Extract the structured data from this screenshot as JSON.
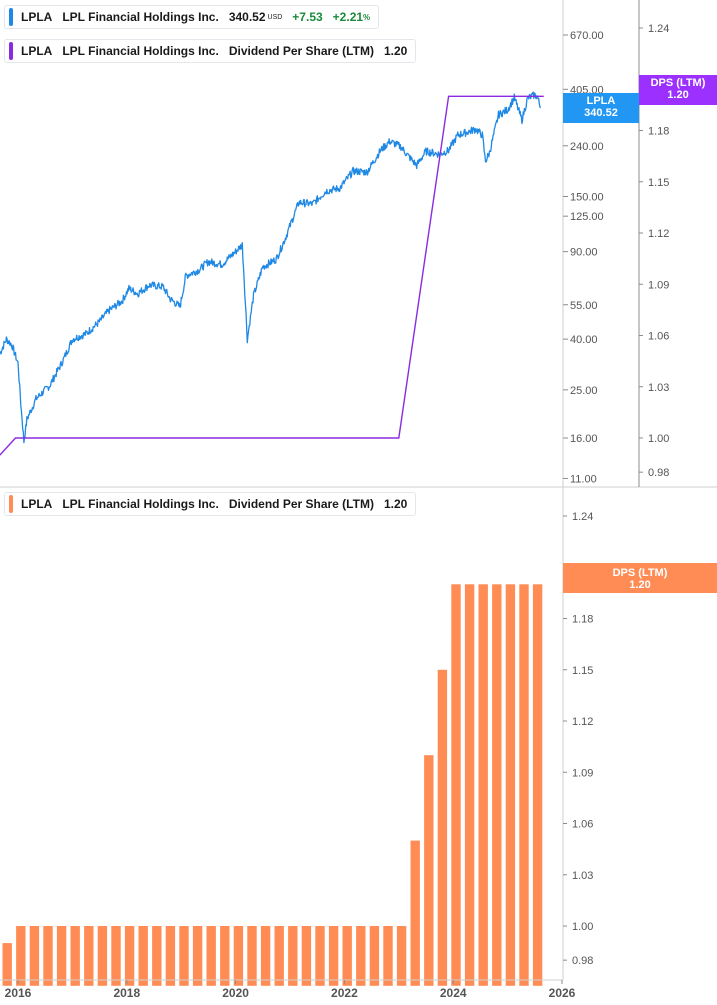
{
  "legend": {
    "price": {
      "ticker": "LPLA",
      "name": "LPL Financial Holdings Inc.",
      "price": "340.52",
      "currency": "USD",
      "change": "+7.53",
      "change_pct": "+2.21",
      "pct_sign": "%",
      "color": "#1e88e5"
    },
    "dps_top": {
      "ticker": "LPLA",
      "name": "LPL Financial Holdings Inc.",
      "metric": "Dividend Per Share (LTM)",
      "value": "1.20",
      "color": "#8a2be2"
    },
    "dps_bottom": {
      "ticker": "LPLA",
      "name": "LPL Financial Holdings Inc.",
      "metric": "Dividend Per Share (LTM)",
      "value": "1.20",
      "color": "#ff8c55"
    }
  },
  "badges": {
    "price": {
      "line1": "LPLA",
      "line2": "340.52",
      "color": "#2196f3"
    },
    "dps_top": {
      "line1": "DPS (LTM)",
      "line2": "1.20",
      "color": "#9b30ff"
    },
    "dps_bottom": {
      "line1": "DPS (LTM)",
      "line2": "1.20",
      "color": "#ff8c55"
    }
  },
  "colors": {
    "price_line": "#1e88e5",
    "dps_line": "#8a2be2",
    "bars": "#ff8c55",
    "axis_text": "#555555",
    "grid": "#e6e6e6"
  },
  "chart_data": [
    {
      "type": "line",
      "title": "LPLA price",
      "scale": "log",
      "y_ticks": [
        "670.00",
        "405.00",
        "240.00",
        "150.00",
        "125.00",
        "90.00",
        "55.00",
        "40.00",
        "25.00",
        "16.00",
        "11.00"
      ],
      "ylim": [
        10.5,
        880
      ],
      "x_range": [
        "2015-09-01",
        "2025-09-01"
      ],
      "series": [
        {
          "name": "LPLA",
          "points": [
            [
              "2015-09-01",
              35
            ],
            [
              "2015-10-15",
              40
            ],
            [
              "2015-11-20",
              38
            ],
            [
              "2016-01-01",
              32
            ],
            [
              "2016-01-20",
              22
            ],
            [
              "2016-02-10",
              15.5
            ],
            [
              "2016-03-01",
              19
            ],
            [
              "2016-05-01",
              23
            ],
            [
              "2016-08-01",
              26
            ],
            [
              "2016-11-01",
              33
            ],
            [
              "2017-01-01",
              40
            ],
            [
              "2017-04-01",
              42
            ],
            [
              "2017-07-01",
              47
            ],
            [
              "2017-09-01",
              52
            ],
            [
              "2017-12-01",
              57
            ],
            [
              "2018-01-15",
              64
            ],
            [
              "2018-03-15",
              61
            ],
            [
              "2018-06-01",
              66
            ],
            [
              "2018-09-01",
              65
            ],
            [
              "2018-10-20",
              58
            ],
            [
              "2018-12-24",
              54
            ],
            [
              "2019-02-01",
              72
            ],
            [
              "2019-05-01",
              76
            ],
            [
              "2019-07-01",
              82
            ],
            [
              "2019-10-01",
              80
            ],
            [
              "2020-01-01",
              90
            ],
            [
              "2020-02-15",
              96
            ],
            [
              "2020-03-20",
              40
            ],
            [
              "2020-05-01",
              60
            ],
            [
              "2020-07-01",
              78
            ],
            [
              "2020-10-01",
              84
            ],
            [
              "2020-12-01",
              102
            ],
            [
              "2021-03-01",
              142
            ],
            [
              "2021-06-01",
              140
            ],
            [
              "2021-09-01",
              158
            ],
            [
              "2021-12-01",
              162
            ],
            [
              "2022-03-01",
              190
            ],
            [
              "2022-06-01",
              188
            ],
            [
              "2022-09-01",
              230
            ],
            [
              "2022-11-01",
              250
            ],
            [
              "2023-01-15",
              238
            ],
            [
              "2023-03-01",
              220
            ],
            [
              "2023-05-01",
              200
            ],
            [
              "2023-07-01",
              228
            ],
            [
              "2023-10-01",
              222
            ],
            [
              "2023-12-01",
              230
            ],
            [
              "2024-02-01",
              265
            ],
            [
              "2024-04-01",
              272
            ],
            [
              "2024-06-01",
              280
            ],
            [
              "2024-07-15",
              265
            ],
            [
              "2024-08-05",
              208
            ],
            [
              "2024-09-01",
              225
            ],
            [
              "2024-11-01",
              320
            ],
            [
              "2025-01-01",
              335
            ],
            [
              "2025-02-15",
              375
            ],
            [
              "2025-04-07",
              305
            ],
            [
              "2025-05-15",
              372
            ],
            [
              "2025-06-30",
              385
            ],
            [
              "2025-07-20",
              378
            ],
            [
              "2025-08-10",
              340.52
            ]
          ]
        }
      ]
    },
    {
      "type": "line",
      "title": "DPS (LTM)",
      "y_ticks": [
        "1.24",
        "1.21",
        "1.18",
        "1.15",
        "1.12",
        "1.09",
        "1.06",
        "1.03",
        "1.00",
        "0.98"
      ],
      "ylim": [
        0.97,
        1.25
      ],
      "series": [
        {
          "name": "Dividend Per Share (LTM)",
          "points": [
            [
              "2015-09-01",
              0.99
            ],
            [
              "2015-12-15",
              1.0
            ],
            [
              "2023-01-01",
              1.0
            ],
            [
              "2023-12-01",
              1.2
            ],
            [
              "2025-09-01",
              1.2
            ]
          ]
        }
      ]
    },
    {
      "type": "bar",
      "title": "Dividend Per Share (LTM)",
      "x_ticks": [
        "2016",
        "2018",
        "2020",
        "2022",
        "2024",
        "2026"
      ],
      "y_ticks": [
        "1.24",
        "1.21",
        "1.18",
        "1.15",
        "1.12",
        "1.09",
        "1.06",
        "1.03",
        "1.00",
        "0.98"
      ],
      "ylim": [
        0.97,
        1.25
      ],
      "series": [
        {
          "name": "Dividend Per Share (LTM)",
          "values": [
            0.99,
            1.0,
            1.0,
            1.0,
            1.0,
            1.0,
            1.0,
            1.0,
            1.0,
            1.0,
            1.0,
            1.0,
            1.0,
            1.0,
            1.0,
            1.0,
            1.0,
            1.0,
            1.0,
            1.0,
            1.0,
            1.0,
            1.0,
            1.0,
            1.0,
            1.0,
            1.0,
            1.0,
            1.0,
            1.0,
            1.05,
            1.1,
            1.15,
            1.2,
            1.2,
            1.2,
            1.2,
            1.2,
            1.2,
            1.2
          ]
        }
      ]
    }
  ]
}
